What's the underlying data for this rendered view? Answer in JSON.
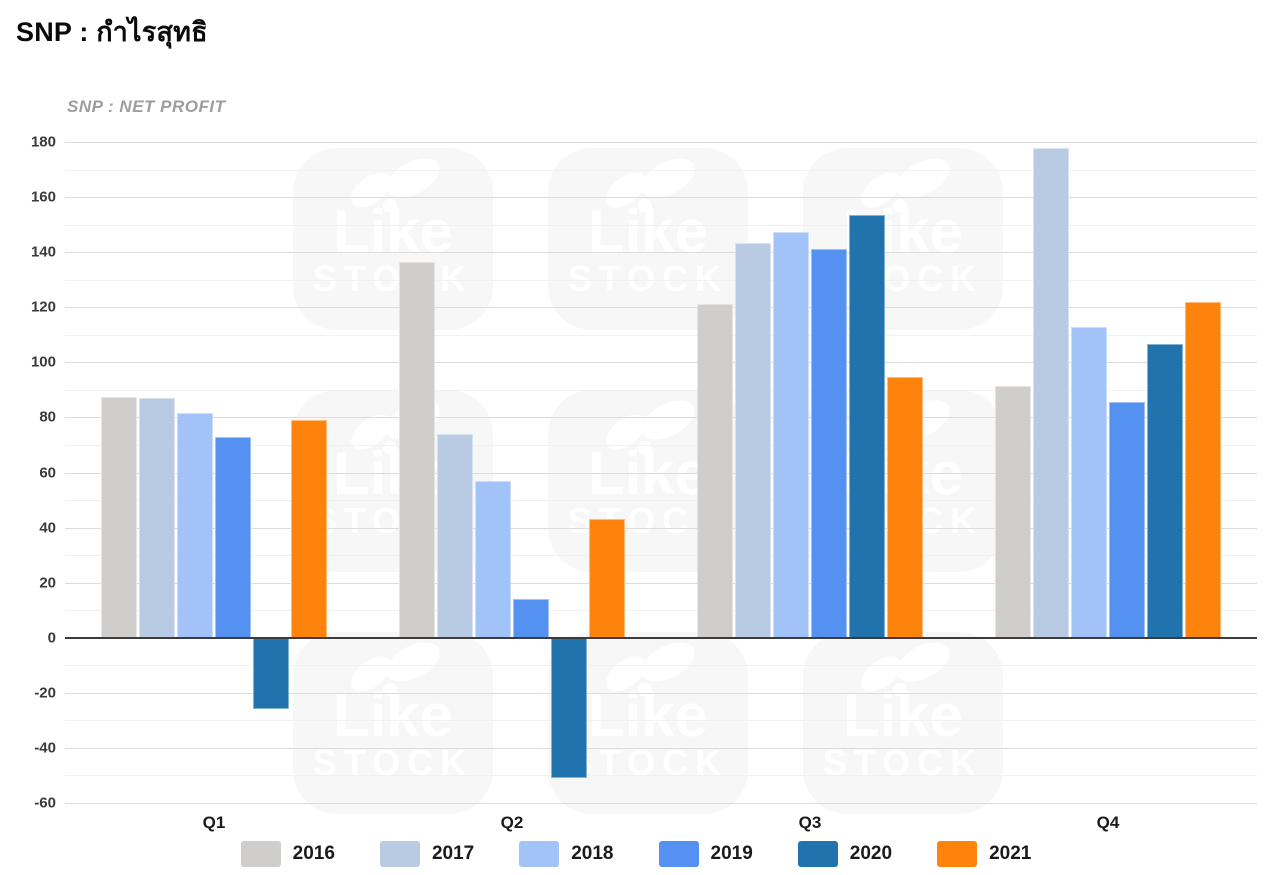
{
  "page": {
    "title": "SNP : กำไรสุทธิ",
    "subtitle": "SNP : NET PROFIT"
  },
  "watermark": {
    "line1": "Like",
    "line2": "STOCK"
  },
  "chart_data": {
    "type": "bar",
    "title": "SNP : กำไรสุทธิ",
    "subtitle": "SNP : NET PROFIT",
    "categories": [
      "Q1",
      "Q2",
      "Q3",
      "Q4"
    ],
    "series": [
      {
        "name": "2016",
        "color": "#D0CECC",
        "values": [
          87.5,
          136.5,
          121,
          91.5
        ]
      },
      {
        "name": "2017",
        "color": "#B8CBE3",
        "values": [
          87,
          74,
          143.5,
          178
        ]
      },
      {
        "name": "2018",
        "color": "#A2C3F8",
        "values": [
          81.5,
          57,
          147.5,
          113
        ]
      },
      {
        "name": "2019",
        "color": "#5591F0",
        "values": [
          73,
          14,
          141,
          85.5
        ]
      },
      {
        "name": "2020",
        "color": "#2173AD",
        "values": [
          -26,
          -51,
          153.5,
          106.5
        ]
      },
      {
        "name": "2021",
        "color": "#FD830D",
        "values": [
          79,
          43,
          94.5,
          122
        ]
      }
    ],
    "ylim": [
      -60,
      180
    ],
    "ytick_major": 20,
    "ytick_minor": 10,
    "grid": true,
    "legend_position": "bottom"
  }
}
